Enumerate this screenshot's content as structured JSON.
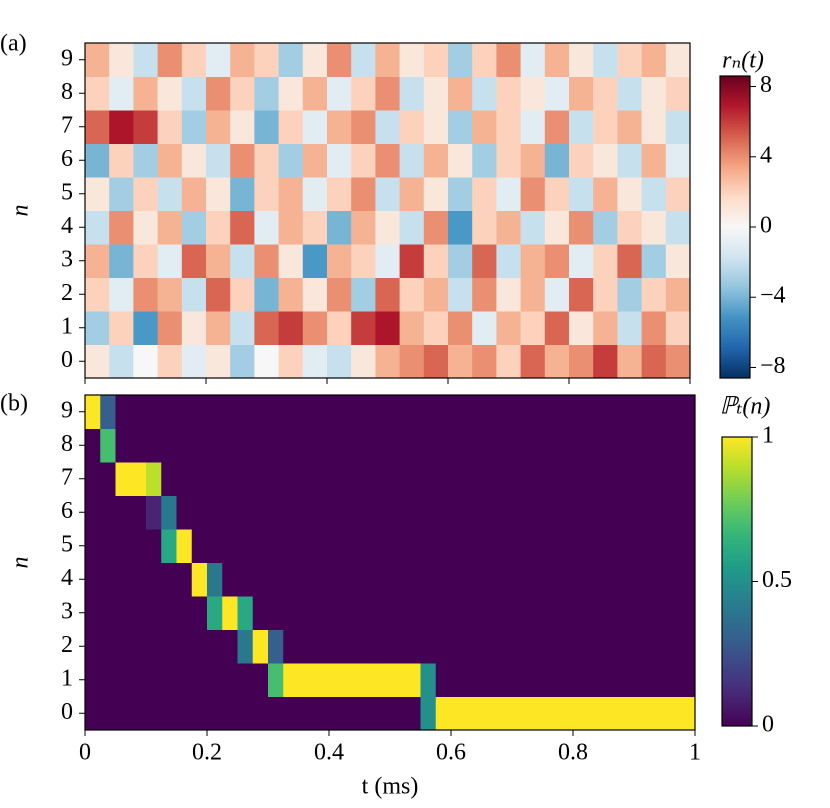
{
  "chart_data": [
    {
      "type": "heatmap",
      "panel_label": "(a)",
      "ylabel": "n",
      "ylim": [
        -0.5,
        9.5
      ],
      "yticks": [
        0,
        1,
        2,
        3,
        4,
        5,
        6,
        7,
        8,
        9
      ],
      "xlim": [
        0,
        1
      ],
      "xticks": [
        0,
        0.2,
        0.4,
        0.6,
        0.8,
        1
      ],
      "show_xticklabels": false,
      "colormap": "RdBu_r",
      "z": [
        [
          1,
          -2,
          0,
          2,
          -1,
          1,
          -3,
          0,
          2,
          -1,
          -2,
          1,
          3,
          4,
          5,
          3,
          4,
          2,
          5,
          3,
          4,
          6,
          3,
          5,
          4
        ],
        [
          -3,
          2,
          -5,
          4,
          1,
          3,
          -2,
          5,
          6,
          4,
          2,
          6,
          7,
          3,
          2,
          4,
          -1,
          3,
          2,
          5,
          1,
          3,
          -2,
          4,
          2
        ],
        [
          2,
          -1,
          4,
          3,
          -2,
          5,
          2,
          -4,
          3,
          1,
          4,
          -3,
          5,
          2,
          3,
          -2,
          4,
          1,
          3,
          -1,
          5,
          2,
          -3,
          2,
          3
        ],
        [
          3,
          -4,
          2,
          -1,
          5,
          3,
          -2,
          4,
          1,
          -5,
          3,
          2,
          -1,
          6,
          2,
          -3,
          5,
          -2,
          3,
          4,
          -1,
          2,
          5,
          -3,
          1
        ],
        [
          -2,
          4,
          1,
          3,
          -3,
          2,
          5,
          -1,
          3,
          2,
          -4,
          3,
          1,
          -2,
          4,
          -5,
          2,
          3,
          -2,
          1,
          4,
          -3,
          2,
          1,
          -2
        ],
        [
          1,
          -3,
          2,
          -2,
          3,
          1,
          -4,
          2,
          3,
          -1,
          2,
          4,
          -2,
          3,
          1,
          -3,
          2,
          -1,
          4,
          2,
          -2,
          3,
          1,
          -2,
          2
        ],
        [
          -4,
          2,
          -3,
          3,
          1,
          -2,
          4,
          2,
          -3,
          3,
          -1,
          2,
          4,
          -2,
          3,
          1,
          -3,
          2,
          3,
          -4,
          2,
          1,
          -2,
          3,
          -1
        ],
        [
          5,
          7,
          6,
          2,
          -3,
          3,
          1,
          -4,
          2,
          -1,
          3,
          4,
          -2,
          2,
          1,
          -3,
          3,
          2,
          -1,
          4,
          -2,
          2,
          3,
          1,
          -2
        ],
        [
          2,
          -1,
          3,
          1,
          -2,
          4,
          2,
          -3,
          1,
          3,
          -1,
          2,
          4,
          -2,
          1,
          3,
          -2,
          2,
          1,
          -1,
          3,
          2,
          -2,
          1,
          2
        ],
        [
          3,
          1,
          -2,
          4,
          2,
          -1,
          3,
          2,
          -3,
          1,
          4,
          -2,
          3,
          1,
          2,
          -3,
          2,
          4,
          -1,
          3,
          1,
          -2,
          2,
          3,
          1
        ]
      ],
      "colorbar": {
        "label": "rₙ(t)",
        "lim": [
          -8.6,
          8.6
        ],
        "ticks": [
          8,
          4,
          0,
          {
            "value": -4,
            "label": "−4"
          },
          {
            "value": -8,
            "label": "−8"
          }
        ]
      }
    },
    {
      "type": "heatmap",
      "panel_label": "(b)",
      "ylabel": "n",
      "xlabel": "t (ms)",
      "ylim": [
        -0.5,
        9.5
      ],
      "yticks": [
        0,
        1,
        2,
        3,
        4,
        5,
        6,
        7,
        8,
        9
      ],
      "xlim": [
        0,
        1
      ],
      "xticks": [
        0,
        0.2,
        0.4,
        0.6,
        0.8,
        1
      ],
      "show_xticklabels": true,
      "colormap": "viridis",
      "z": [
        [
          0,
          0,
          0,
          0,
          0,
          0,
          0,
          0,
          0,
          0,
          0,
          0,
          0,
          0,
          0,
          0,
          0,
          0,
          0,
          0,
          0,
          0,
          0.5,
          1,
          1,
          1,
          1,
          1,
          1,
          1,
          1,
          1,
          1,
          1,
          1,
          1,
          1,
          1,
          1,
          1
        ],
        [
          0,
          0,
          0,
          0,
          0,
          0,
          0,
          0,
          0,
          0,
          0,
          0,
          0.7,
          1,
          1,
          1,
          1,
          1,
          1,
          1,
          1,
          1,
          0.5,
          0,
          0,
          0,
          0,
          0,
          0,
          0,
          0,
          0,
          0,
          0,
          0,
          0,
          0,
          0,
          0,
          0
        ],
        [
          0,
          0,
          0,
          0,
          0,
          0,
          0,
          0,
          0,
          0,
          0.4,
          1,
          0.3,
          0,
          0,
          0,
          0,
          0,
          0,
          0,
          0,
          0,
          0,
          0,
          0,
          0,
          0,
          0,
          0,
          0,
          0,
          0,
          0,
          0,
          0,
          0,
          0,
          0,
          0,
          0
        ],
        [
          0,
          0,
          0,
          0,
          0,
          0,
          0,
          0,
          0.6,
          1,
          0.6,
          0,
          0,
          0,
          0,
          0,
          0,
          0,
          0,
          0,
          0,
          0,
          0,
          0,
          0,
          0,
          0,
          0,
          0,
          0,
          0,
          0,
          0,
          0,
          0,
          0,
          0,
          0,
          0,
          0
        ],
        [
          0,
          0,
          0,
          0,
          0,
          0,
          0,
          1,
          0.4,
          0,
          0,
          0,
          0,
          0,
          0,
          0,
          0,
          0,
          0,
          0,
          0,
          0,
          0,
          0,
          0,
          0,
          0,
          0,
          0,
          0,
          0,
          0,
          0,
          0,
          0,
          0,
          0,
          0,
          0,
          0
        ],
        [
          0,
          0,
          0,
          0,
          0,
          0.6,
          1,
          0,
          0,
          0,
          0,
          0,
          0,
          0,
          0,
          0,
          0,
          0,
          0,
          0,
          0,
          0,
          0,
          0,
          0,
          0,
          0,
          0,
          0,
          0,
          0,
          0,
          0,
          0,
          0,
          0,
          0,
          0,
          0,
          0
        ],
        [
          0,
          0,
          0,
          0,
          0.1,
          0.4,
          0,
          0,
          0,
          0,
          0,
          0,
          0,
          0,
          0,
          0,
          0,
          0,
          0,
          0,
          0,
          0,
          0,
          0,
          0,
          0,
          0,
          0,
          0,
          0,
          0,
          0,
          0,
          0,
          0,
          0,
          0,
          0,
          0,
          0
        ],
        [
          0,
          0,
          1,
          1,
          0.9,
          0,
          0,
          0,
          0,
          0,
          0,
          0,
          0,
          0,
          0,
          0,
          0,
          0,
          0,
          0,
          0,
          0,
          0,
          0,
          0,
          0,
          0,
          0,
          0,
          0,
          0,
          0,
          0,
          0,
          0,
          0,
          0,
          0,
          0,
          0
        ],
        [
          0,
          0.7,
          0,
          0,
          0,
          0,
          0,
          0,
          0,
          0,
          0,
          0,
          0,
          0,
          0,
          0,
          0,
          0,
          0,
          0,
          0,
          0,
          0,
          0,
          0,
          0,
          0,
          0,
          0,
          0,
          0,
          0,
          0,
          0,
          0,
          0,
          0,
          0,
          0,
          0
        ],
        [
          1,
          0.3,
          0,
          0,
          0,
          0,
          0,
          0,
          0,
          0,
          0,
          0,
          0,
          0,
          0,
          0,
          0,
          0,
          0,
          0,
          0,
          0,
          0,
          0,
          0,
          0,
          0,
          0,
          0,
          0,
          0,
          0,
          0,
          0,
          0,
          0,
          0,
          0,
          0,
          0
        ]
      ],
      "colorbar": {
        "label": "ℙₜ(n)",
        "lim": [
          0,
          1
        ],
        "ticks": [
          1,
          0.5,
          0
        ]
      }
    }
  ]
}
